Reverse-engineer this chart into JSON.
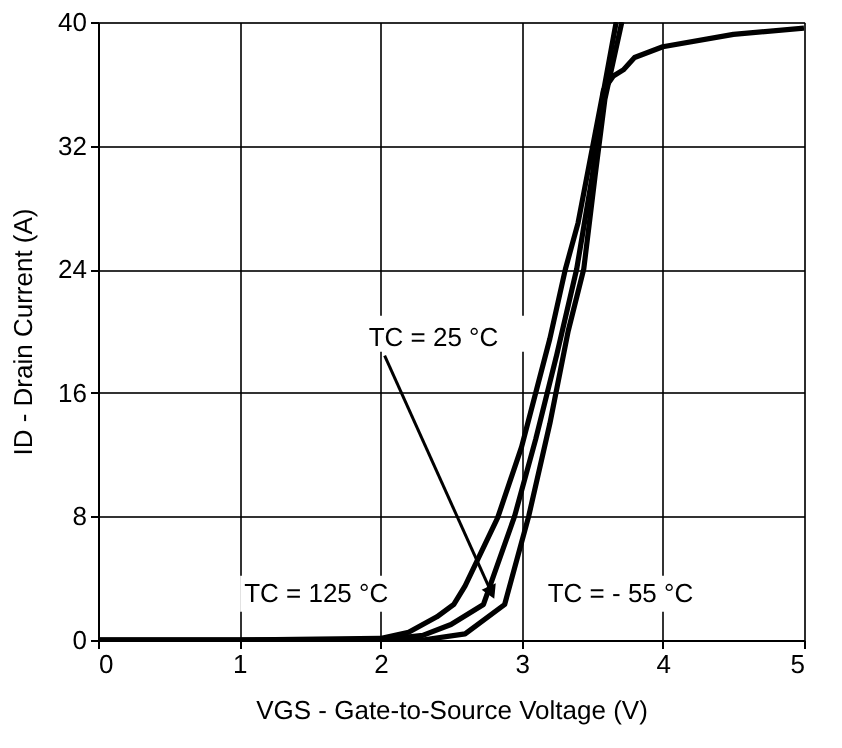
{
  "chart_data": {
    "type": "line",
    "xlabel": "VGS - Gate-to-Source Voltage (V)",
    "ylabel": "ID - Drain Current (A)",
    "xlim": [
      0,
      5
    ],
    "ylim": [
      0,
      40
    ],
    "xticks": [
      {
        "value": 0,
        "label": "0"
      },
      {
        "value": 1,
        "label": "1"
      },
      {
        "value": 2,
        "label": "2"
      },
      {
        "value": 3,
        "label": "3"
      },
      {
        "value": 4,
        "label": "4"
      },
      {
        "value": 5,
        "label": "5"
      }
    ],
    "yticks": [
      0,
      8,
      16,
      24,
      32,
      40
    ],
    "grid": true,
    "legend": false,
    "marker": "none",
    "line_style": "solid",
    "series": [
      {
        "color": "#000000",
        "x": [
          0,
          1,
          2,
          2.2,
          2.4,
          2.52,
          2.6,
          2.83,
          3.0,
          3.2,
          3.31,
          3.4,
          3.58,
          3.65,
          3.72,
          3.8,
          4.0,
          4.5,
          5
        ],
        "values": [
          0,
          0,
          0.1,
          0.5,
          1.5,
          2.3,
          3.5,
          7.9,
          12.5,
          19.5,
          24,
          27,
          35.6,
          36.5,
          36.9,
          37.7,
          38.4,
          39.2,
          39.6
        ]
      },
      {
        "color": "#000000",
        "x": [
          0,
          2,
          2.3,
          2.5,
          2.73,
          2.95,
          3.1,
          3.25,
          3.39,
          3.5,
          3.58,
          3.67
        ],
        "values": [
          0,
          0,
          0.3,
          1,
          2.3,
          8,
          13,
          18.5,
          24,
          30,
          35.5,
          40
        ]
      },
      {
        "color": "#000000",
        "x": [
          0,
          2.3,
          2.6,
          2.88,
          3.05,
          3.2,
          3.33,
          3.44,
          3.52,
          3.59,
          3.71
        ],
        "values": [
          0,
          0,
          0.4,
          2.3,
          8,
          14,
          20,
          24,
          30,
          35,
          40
        ]
      }
    ],
    "annotations": [
      {
        "text": "TC = 25 °C",
        "x": 2.78,
        "y": 3.2
      },
      "TC = 125 °C",
      "TC = - 55 °C"
    ]
  }
}
